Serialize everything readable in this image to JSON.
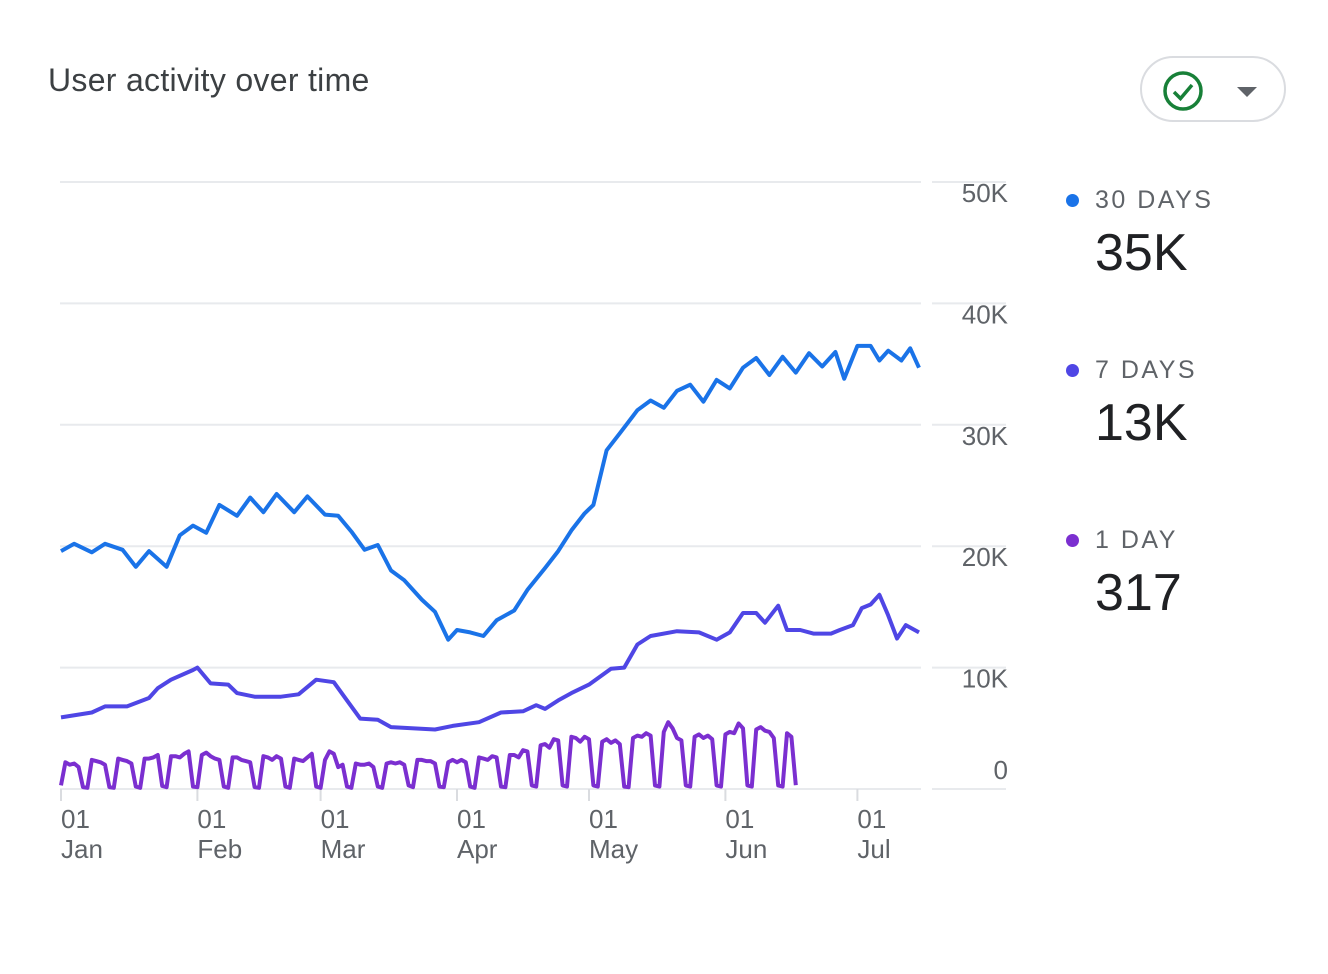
{
  "header": {
    "title": "User activity over time",
    "filter_button": {
      "icon": "check-circle-icon",
      "dropdown_icon": "caret-down-icon",
      "icon_color": "#188038"
    }
  },
  "legend": [
    {
      "label": "30 DAYS",
      "value": "35K",
      "color": "#1a73e8"
    },
    {
      "label": "7 DAYS",
      "value": "13K",
      "color": "#4f46e5"
    },
    {
      "label": "1 DAY",
      "value": "317",
      "color": "#7b2fd0"
    }
  ],
  "chart_data": {
    "type": "line",
    "title": "User activity over time",
    "x_unit": "day index from 01 Jan",
    "xlim": [
      0,
      195
    ],
    "ylim": [
      0,
      50000
    ],
    "grid": true,
    "legend_position": "right",
    "y_ticks": [
      {
        "value": 50000,
        "label": "50K"
      },
      {
        "value": 40000,
        "label": "40K"
      },
      {
        "value": 30000,
        "label": "30K"
      },
      {
        "value": 20000,
        "label": "20K"
      },
      {
        "value": 10000,
        "label": "10K"
      },
      {
        "value": 0,
        "label": "0"
      }
    ],
    "x_ticks": [
      {
        "day": 0,
        "day_label": "01",
        "month": "Jan"
      },
      {
        "day": 31,
        "day_label": "01",
        "month": "Feb"
      },
      {
        "day": 59,
        "day_label": "01",
        "month": "Mar"
      },
      {
        "day": 90,
        "day_label": "01",
        "month": "Apr"
      },
      {
        "day": 120,
        "day_label": "01",
        "month": "May"
      },
      {
        "day": 151,
        "day_label": "01",
        "month": "Jun"
      },
      {
        "day": 181,
        "day_label": "01",
        "month": "Jul"
      }
    ],
    "series": [
      {
        "name": "30 DAYS",
        "color": "#1a73e8",
        "x": [
          0,
          3,
          7,
          10,
          14,
          17,
          20,
          24,
          27,
          30,
          33,
          36,
          40,
          43,
          46,
          49,
          53,
          56,
          60,
          63,
          66,
          69,
          72,
          75,
          78,
          82,
          85,
          88,
          90,
          93,
          96,
          99,
          103,
          106,
          110,
          113,
          116,
          119,
          121,
          124,
          127,
          131,
          134,
          137,
          140,
          143,
          146,
          149,
          152,
          155,
          158,
          161,
          164,
          167,
          170,
          173,
          176,
          178,
          181,
          184,
          186,
          188,
          191,
          193,
          195
        ],
        "y": [
          19600,
          20200,
          19500,
          20200,
          19700,
          18300,
          19600,
          18300,
          20900,
          21700,
          21100,
          23400,
          22500,
          24000,
          22800,
          24300,
          22800,
          24100,
          22600,
          22500,
          21200,
          19700,
          20100,
          18000,
          17200,
          15600,
          14600,
          12300,
          13100,
          12900,
          12600,
          13900,
          14700,
          16400,
          18200,
          19600,
          21300,
          22700,
          23400,
          27900,
          29300,
          31200,
          32000,
          31400,
          32800,
          33300,
          31900,
          33700,
          33000,
          34700,
          35500,
          34100,
          35600,
          34300,
          35900,
          34800,
          36000,
          33800,
          36500,
          36500,
          35300,
          36100,
          35300,
          36300,
          34700
        ]
      },
      {
        "name": "7 DAYS",
        "color": "#4f46e5",
        "x": [
          0,
          7,
          10,
          15,
          20,
          22,
          25,
          30,
          31,
          34,
          38,
          40,
          44,
          50,
          54,
          58,
          62,
          65,
          68,
          72,
          75,
          85,
          89,
          95,
          100,
          105,
          108,
          110,
          113,
          116,
          120,
          125,
          128,
          131,
          134,
          140,
          145,
          149,
          152,
          155,
          158,
          160,
          163,
          165,
          168,
          171,
          175,
          177,
          180,
          182,
          184,
          186,
          188,
          190,
          192,
          195
        ],
        "y": [
          5900,
          6300,
          6800,
          6800,
          7500,
          8300,
          9000,
          9800,
          10000,
          8700,
          8600,
          7900,
          7600,
          7600,
          7800,
          9000,
          8800,
          7300,
          5800,
          5700,
          5100,
          4900,
          5200,
          5500,
          6300,
          6400,
          6900,
          6600,
          7300,
          7900,
          8600,
          9900,
          10000,
          11900,
          12600,
          13000,
          12900,
          12300,
          12900,
          14500,
          14500,
          13700,
          15100,
          13100,
          13100,
          12800,
          12800,
          13100,
          13500,
          14900,
          15200,
          16000,
          14300,
          12400,
          13500,
          12900
        ]
      },
      {
        "name": "1 DAY",
        "color": "#7b2fd0",
        "y": [
          300,
          2200,
          2000,
          2100,
          1800,
          150,
          100,
          2400,
          2300,
          2200,
          2000,
          150,
          100,
          2500,
          2400,
          2300,
          2100,
          200,
          100,
          2500,
          2500,
          2600,
          2800,
          250,
          150,
          2700,
          2700,
          2600,
          2900,
          3100,
          200,
          150,
          2800,
          3000,
          2700,
          2500,
          2400,
          200,
          100,
          2600,
          2600,
          2400,
          2300,
          2200,
          150,
          100,
          2700,
          2600,
          2400,
          2700,
          2500,
          200,
          100,
          2500,
          2400,
          2300,
          2600,
          2900,
          200,
          100,
          2400,
          3100,
          2900,
          1800,
          2000,
          200,
          100,
          2100,
          2000,
          2000,
          2100,
          1800,
          200,
          100,
          2100,
          2200,
          2100,
          2200,
          2000,
          300,
          150,
          2400,
          2400,
          2300,
          2300,
          2100,
          200,
          150,
          2200,
          2400,
          2200,
          2400,
          2200,
          200,
          100,
          2600,
          2500,
          2400,
          2700,
          2600,
          200,
          150,
          2800,
          2800,
          2600,
          3200,
          3100,
          300,
          200,
          3600,
          3700,
          3400,
          4100,
          4000,
          300,
          200,
          4300,
          4200,
          3900,
          4300,
          4100,
          300,
          200,
          3900,
          4100,
          3800,
          4000,
          3700,
          200,
          150,
          4200,
          4400,
          4300,
          4600,
          4400,
          300,
          200,
          4700,
          5500,
          5000,
          4200,
          4000,
          300,
          200,
          4300,
          4500,
          4200,
          4400,
          4100,
          300,
          200,
          4500,
          4700,
          4600,
          5400,
          5000,
          300,
          200,
          4900,
          5100,
          4800,
          4700,
          4200,
          300,
          200,
          4600,
          4300,
          317
        ]
      }
    ]
  }
}
